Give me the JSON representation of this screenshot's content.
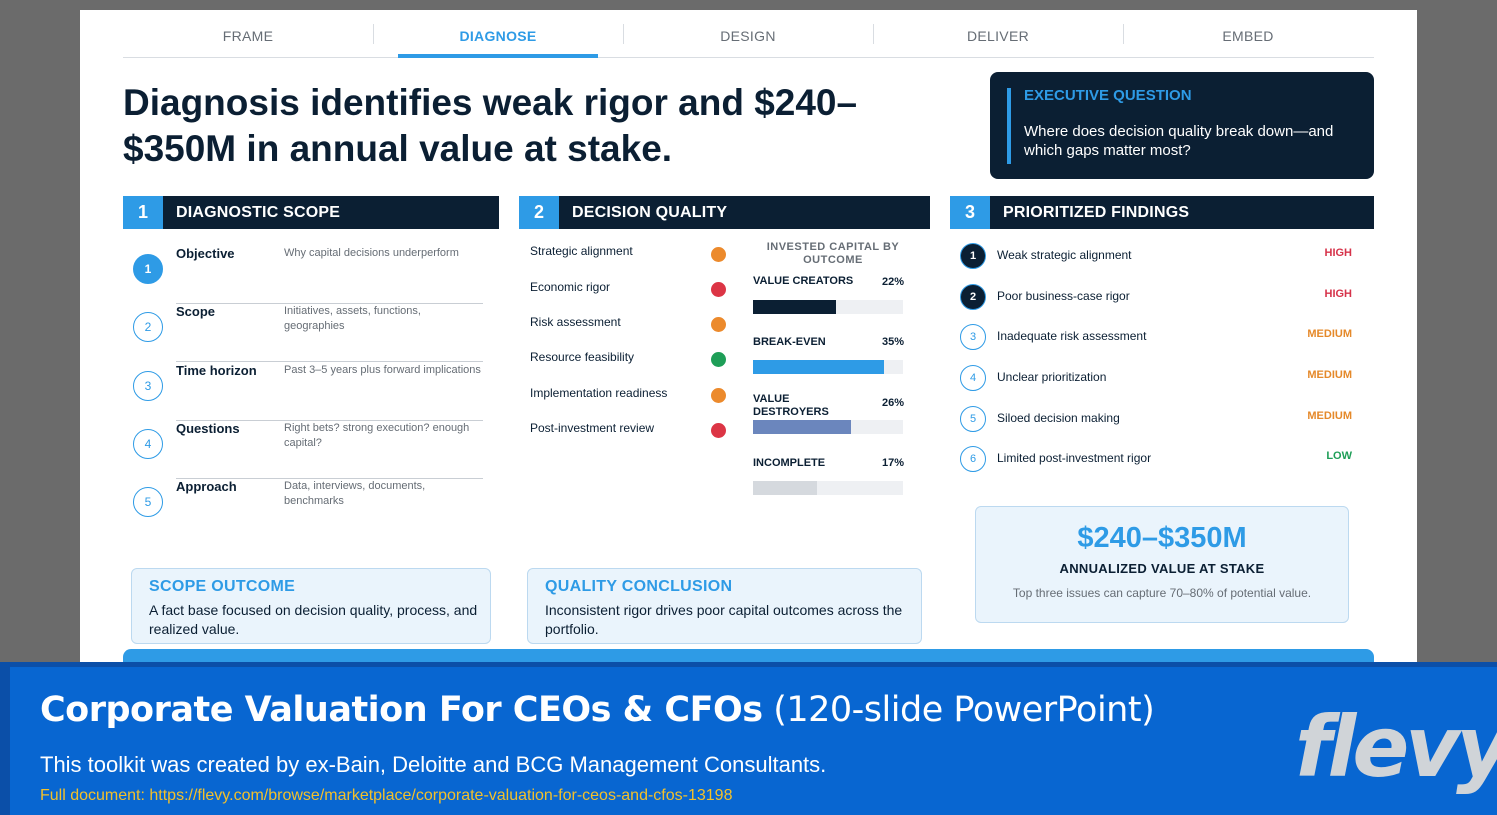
{
  "tabs": [
    "FRAME",
    "DIAGNOSE",
    "DESIGN",
    "DELIVER",
    "EMBED"
  ],
  "active_tab": "DIAGNOSE",
  "headline": "Diagnosis identifies weak rigor and $240–$350M in annual value at stake.",
  "executive": {
    "title": "EXECUTIVE QUESTION",
    "text": "Where does decision quality break down—and which gaps matter most?"
  },
  "sections": [
    {
      "num": "1",
      "title": "DIAGNOSTIC SCOPE"
    },
    {
      "num": "2",
      "title": "DECISION QUALITY"
    },
    {
      "num": "3",
      "title": "PRIORITIZED FINDINGS"
    }
  ],
  "scope": [
    {
      "num": "1",
      "label": "Objective",
      "desc": "Why capital decisions underperform"
    },
    {
      "num": "2",
      "label": "Scope",
      "desc": "Initiatives, assets, functions, geographies"
    },
    {
      "num": "3",
      "label": "Time horizon",
      "desc": "Past 3–5 years plus forward implications"
    },
    {
      "num": "4",
      "label": "Questions",
      "desc": "Right bets? strong execution? enough capital?"
    },
    {
      "num": "5",
      "label": "Approach",
      "desc": "Data, interviews, documents, benchmarks"
    }
  ],
  "quality": [
    {
      "label": "Strategic alignment",
      "status": "amber",
      "color": "#ec8a2c"
    },
    {
      "label": "Economic rigor",
      "status": "red",
      "color": "#dc3545"
    },
    {
      "label": "Risk assessment",
      "status": "amber",
      "color": "#ec8a2c"
    },
    {
      "label": "Resource feasibility",
      "status": "green",
      "color": "#1e9e57"
    },
    {
      "label": "Implementation readiness",
      "status": "amber",
      "color": "#ec8a2c"
    },
    {
      "label": "Post-investment review",
      "status": "red",
      "color": "#dc3545"
    }
  ],
  "chart_data": {
    "type": "bar",
    "title": "INVESTED CAPITAL BY OUTCOME",
    "categories": [
      "VALUE CREATORS",
      "BREAK-EVEN",
      "VALUE DESTROYERS",
      "INCOMPLETE"
    ],
    "values": [
      22,
      35,
      26,
      17
    ],
    "labels": [
      "22%",
      "35%",
      "26%",
      "17%"
    ],
    "colors": [
      "#0b1f33",
      "#2e9be6",
      "#6b86bd",
      "#d5d9de"
    ],
    "ylim": [
      0,
      40
    ]
  },
  "findings": [
    {
      "num": "1",
      "text": "Weak strategic alignment",
      "severity": "HIGH",
      "color": "#d6334a"
    },
    {
      "num": "2",
      "text": "Poor business-case rigor",
      "severity": "HIGH",
      "color": "#d6334a"
    },
    {
      "num": "3",
      "text": "Inadequate risk assessment",
      "severity": "MEDIUM",
      "color": "#e5892a"
    },
    {
      "num": "4",
      "text": "Unclear prioritization",
      "severity": "MEDIUM",
      "color": "#e5892a"
    },
    {
      "num": "5",
      "text": "Siloed decision making",
      "severity": "MEDIUM",
      "color": "#e5892a"
    },
    {
      "num": "6",
      "text": "Limited post-investment rigor",
      "severity": "LOW",
      "color": "#1e9e57"
    }
  ],
  "value": {
    "amount": "$240–$350M",
    "label": "ANNUALIZED VALUE AT STAKE",
    "note": "Top three issues can capture 70–80% of potential value."
  },
  "outcomes": {
    "scope": {
      "title": "SCOPE OUTCOME",
      "text": "A fact base focused on decision quality, process, and realized value."
    },
    "quality": {
      "title": "QUALITY CONCLUSION",
      "text": "Inconsistent rigor drives poor capital outcomes across the portfolio."
    }
  },
  "banner": {
    "title_bold": "Corporate Valuation For CEOs & CFOs",
    "title_light": "(120-slide PowerPoint)",
    "subtitle": "This toolkit was created by ex-Bain, Deloitte and BCG Management Consultants.",
    "link": "Full document: https://flevy.com/browse/marketplace/corporate-valuation-for-ceos-and-cfos-13198",
    "logo": "flevy"
  }
}
